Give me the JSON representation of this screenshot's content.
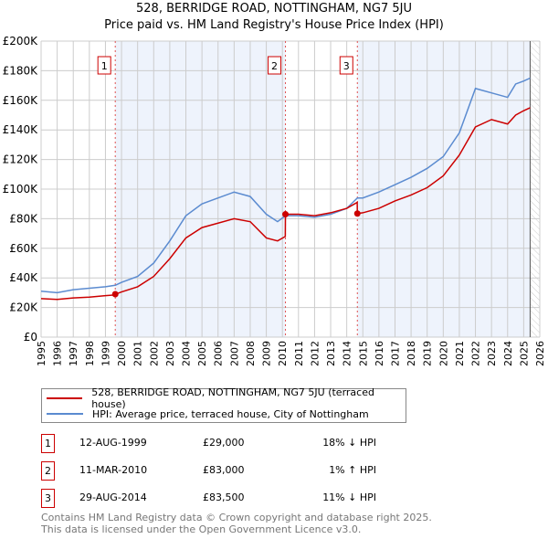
{
  "chart_data": {
    "type": "line",
    "title": "528, BERRIDGE ROAD, NOTTINGHAM, NG7 5JU",
    "subtitle": "Price paid vs. HM Land Registry's House Price Index (HPI)",
    "xlim": [
      1995,
      2026
    ],
    "ylim": [
      0,
      200000
    ],
    "yticks": [
      0,
      20000,
      40000,
      60000,
      80000,
      100000,
      120000,
      140000,
      160000,
      180000,
      200000
    ],
    "ytick_labels": [
      "£0",
      "£20K",
      "£40K",
      "£60K",
      "£80K",
      "£100K",
      "£120K",
      "£140K",
      "£160K",
      "£180K",
      "£200K"
    ],
    "xticks": [
      "1995",
      "1996",
      "1997",
      "1998",
      "1999",
      "2000",
      "2001",
      "2002",
      "2003",
      "2004",
      "2005",
      "2006",
      "2007",
      "2008",
      "2009",
      "2010",
      "2011",
      "2012",
      "2013",
      "2014",
      "2015",
      "2016",
      "2017",
      "2018",
      "2019",
      "2020",
      "2021",
      "2022",
      "2023",
      "2024",
      "2025",
      "2026"
    ],
    "grid": true,
    "series": [
      {
        "name": "528, BERRIDGE ROAD, NOTTINGHAM, NG7 5JU (terraced house)",
        "color": "#cc0000",
        "x": [
          1995,
          1996,
          1997,
          1998,
          1999,
          1999.61,
          1999.62,
          2000,
          2001,
          2002,
          2003,
          2004,
          2005,
          2006,
          2007,
          2008,
          2009,
          2009.7,
          2010.18,
          2010.19,
          2011,
          2012,
          2013,
          2014,
          2014.65,
          2014.66,
          2015,
          2016,
          2017,
          2018,
          2019,
          2020,
          2021,
          2022,
          2023,
          2024,
          2024.5,
          2025,
          2025.4
        ],
        "y": [
          26000,
          25500,
          26500,
          27000,
          28000,
          28500,
          29000,
          30500,
          34000,
          41000,
          53000,
          67000,
          74000,
          77000,
          80000,
          78000,
          67000,
          65000,
          68000,
          83000,
          83000,
          82000,
          84000,
          87000,
          91000,
          83500,
          84000,
          87000,
          92000,
          96000,
          101000,
          109000,
          123000,
          142000,
          147000,
          144000,
          150000,
          153000,
          155000
        ]
      },
      {
        "name": "HPI: Average price, terraced house, City of Nottingham",
        "color": "#5b8bd0",
        "x": [
          1995,
          1996,
          1997,
          1998,
          1999,
          1999.61,
          2000,
          2001,
          2002,
          2003,
          2004,
          2005,
          2006,
          2007,
          2008,
          2009,
          2009.7,
          2010.19,
          2011,
          2012,
          2013,
          2014,
          2014.66,
          2015,
          2016,
          2017,
          2018,
          2019,
          2020,
          2021,
          2022,
          2023,
          2024,
          2024.5,
          2025,
          2025.4
        ],
        "y": [
          31000,
          30000,
          32000,
          33000,
          34000,
          35000,
          37000,
          41000,
          50000,
          65000,
          82000,
          90000,
          94000,
          98000,
          95000,
          83000,
          78000,
          82000,
          82000,
          81000,
          83000,
          87000,
          94000,
          94000,
          98000,
          103000,
          108000,
          114000,
          122000,
          138000,
          168000,
          165000,
          162000,
          171000,
          173000,
          175000
        ]
      }
    ],
    "sales": [
      {
        "label": "1",
        "x": 1999.61,
        "date": "12-AUG-1999",
        "price": "£29,000",
        "hpi": "18% ↓ HPI",
        "value": 29000
      },
      {
        "label": "2",
        "x": 2010.19,
        "date": "11-MAR-2010",
        "price": "£83,000",
        "hpi": "1% ↑ HPI",
        "value": 83000
      },
      {
        "label": "3",
        "x": 2014.66,
        "date": "29-AUG-2014",
        "price": "£83,500",
        "hpi": "11% ↓ HPI",
        "value": 83500
      }
    ],
    "forecast_start": 2025.4
  },
  "footer": [
    "Contains HM Land Registry data © Crown copyright and database right 2025.",
    "This data is licensed under the Open Government Licence v3.0."
  ]
}
